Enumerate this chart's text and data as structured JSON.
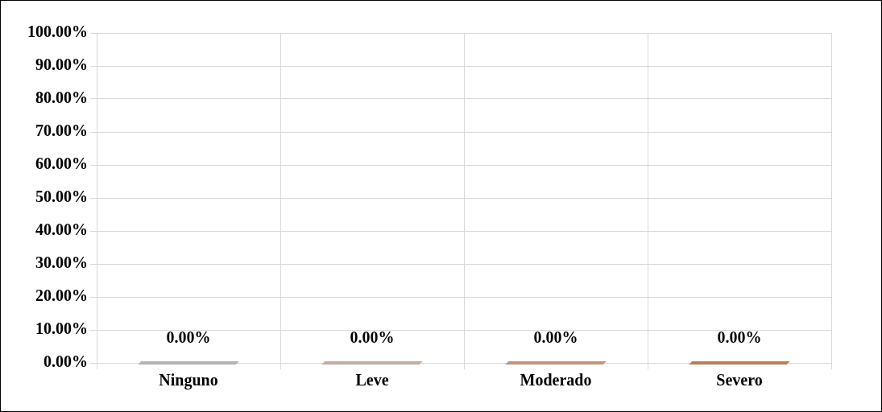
{
  "chart_data": {
    "type": "bar",
    "categories": [
      "Ninguno",
      "Leve",
      "Moderado",
      "Severo"
    ],
    "values": [
      0,
      0,
      0,
      0
    ],
    "colors": [
      "#b3b3b3",
      "#c4aca0",
      "#c0967a",
      "#b97e5a"
    ],
    "value_labels": [
      "0.00%",
      "0.00%",
      "0.00%",
      "0.00%"
    ],
    "ylim": [
      0,
      100
    ],
    "yticks": [
      {
        "value": 0,
        "label": "0.00%"
      },
      {
        "value": 10,
        "label": "10.00%"
      },
      {
        "value": 20,
        "label": "20.00%"
      },
      {
        "value": 30,
        "label": "30.00%"
      },
      {
        "value": 40,
        "label": "40.00%"
      },
      {
        "value": 50,
        "label": "50.00%"
      },
      {
        "value": 60,
        "label": "60.00%"
      },
      {
        "value": 70,
        "label": "70.00%"
      },
      {
        "value": 80,
        "label": "80.00%"
      },
      {
        "value": 90,
        "label": "90.00%"
      },
      {
        "value": 100,
        "label": "100.00%"
      }
    ],
    "grid": true,
    "legend": false
  }
}
